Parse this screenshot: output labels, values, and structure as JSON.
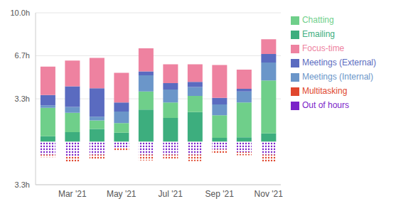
{
  "chart_data": {
    "type": "bar",
    "stacked": true,
    "grid": true,
    "legend": "right",
    "categories": [
      null,
      "Mar '21",
      null,
      "May '21",
      null,
      "Jul '21",
      null,
      "Sep '21",
      null,
      "Nov '21"
    ],
    "ylim": [
      -3.33,
      10
    ],
    "yticks": [
      {
        "value": -3.33,
        "label": "3.3h"
      },
      {
        "value": 3.33,
        "label": "3.3h"
      },
      {
        "value": 6.67,
        "label": "6.7h"
      },
      {
        "value": 10,
        "label": "10.0h"
      }
    ],
    "series": [
      {
        "name": "Emailing",
        "color": "#3dae7e",
        "values": [
          0.43,
          0.75,
          1.0,
          0.7,
          2.5,
          1.85,
          2.3,
          0.3,
          0.35,
          0.65
        ]
      },
      {
        "name": "Chatting",
        "color": "#6fcf8a",
        "values": [
          2.2,
          1.5,
          0.65,
          0.75,
          1.4,
          1.2,
          1.25,
          1.75,
          2.7,
          4.1
        ]
      },
      {
        "name": "Meetings (Internal)",
        "color": "#6b96c9",
        "values": [
          0.2,
          0.45,
          0.3,
          0.9,
          1.25,
          1.0,
          0.7,
          0.85,
          0.85,
          1.4
        ]
      },
      {
        "name": "Meetings (External)",
        "color": "#5a6bc0",
        "values": [
          0.8,
          1.6,
          2.2,
          0.7,
          0.3,
          0.5,
          0.4,
          0.5,
          0.2,
          0.65
        ]
      },
      {
        "name": "Focus-time",
        "color": "#ee82a0",
        "values": [
          2.2,
          2.0,
          2.35,
          2.3,
          1.8,
          1.45,
          1.35,
          2.55,
          1.5,
          1.15
        ]
      },
      {
        "name": "Out of hours",
        "color": "#7b22c9",
        "values": [
          -1.0,
          -1.1,
          -1.0,
          -0.5,
          -1.0,
          -1.0,
          -1.0,
          -0.6,
          -0.8,
          -1.0
        ]
      },
      {
        "name": "Multitasking",
        "color": "#e0472e",
        "values": [
          -0.2,
          -0.45,
          -0.35,
          -0.2,
          -0.45,
          -0.3,
          -0.5,
          -0.25,
          -0.25,
          -0.6
        ]
      }
    ]
  }
}
